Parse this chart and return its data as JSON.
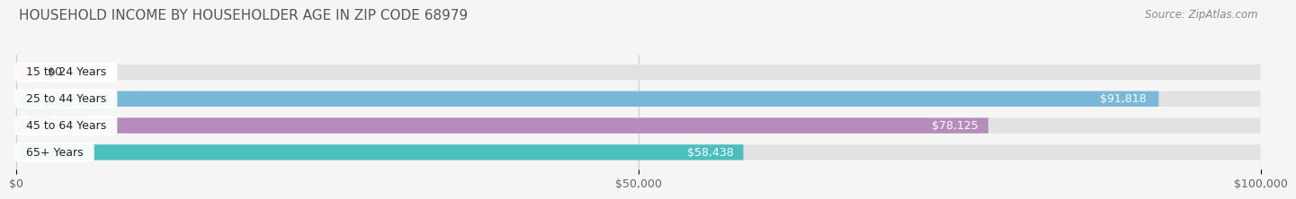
{
  "title": "HOUSEHOLD INCOME BY HOUSEHOLDER AGE IN ZIP CODE 68979",
  "source": "Source: ZipAtlas.com",
  "categories": [
    "15 to 24 Years",
    "25 to 44 Years",
    "45 to 64 Years",
    "65+ Years"
  ],
  "values": [
    0,
    91818,
    78125,
    58438
  ],
  "value_labels": [
    "$0",
    "$91,818",
    "$78,125",
    "$58,438"
  ],
  "bar_colors": [
    "#f4a0a0",
    "#7ab8d9",
    "#b48dbb",
    "#4bbfbf"
  ],
  "background_color": "#f5f5f5",
  "bar_bg_color": "#e2e2e2",
  "xlim": [
    0,
    100000
  ],
  "xtick_values": [
    0,
    50000,
    100000
  ],
  "xtick_labels": [
    "$0",
    "$50,000",
    "$100,000"
  ],
  "title_fontsize": 11,
  "source_fontsize": 8.5,
  "label_fontsize": 9,
  "bar_height": 0.58,
  "fig_width": 14.06,
  "fig_height": 2.33
}
